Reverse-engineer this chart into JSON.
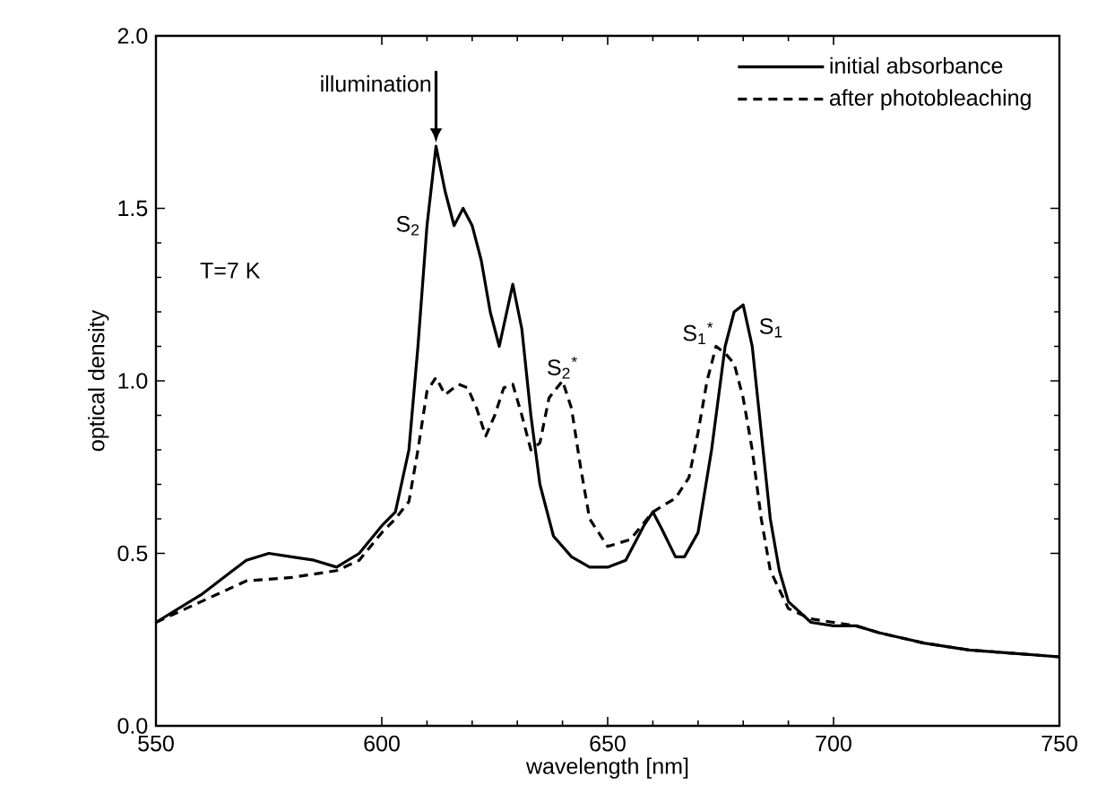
{
  "chart_data": {
    "type": "line",
    "xlabel": "wavelength [nm]",
    "ylabel": "optical density",
    "xlim": [
      550,
      750
    ],
    "ylim": [
      0,
      2.0
    ],
    "xticks": [
      550,
      600,
      650,
      700,
      750
    ],
    "yticks": [
      {
        "value": 0,
        "label": "0.0"
      },
      {
        "value": 0.5,
        "label": "0.5"
      },
      {
        "value": 1.0,
        "label": "1.0"
      },
      {
        "value": 1.5,
        "label": "1.5"
      },
      {
        "value": 2.0,
        "label": "2.0"
      }
    ],
    "legend": "top right",
    "grid": false,
    "marker": "none",
    "series": [
      {
        "name": "initial absorbance",
        "color": "#000000",
        "line_style": "solid",
        "x": [
          550,
          560,
          570,
          575,
          580,
          585,
          590,
          595,
          600,
          603,
          606,
          608,
          610,
          612,
          614,
          616,
          618,
          620,
          622,
          624,
          626,
          628,
          629,
          631,
          633,
          635,
          638,
          642,
          646,
          650,
          654,
          658,
          660,
          662,
          665,
          667,
          670,
          673,
          676,
          678,
          680,
          682,
          684,
          686,
          688,
          690,
          695,
          700,
          705,
          710,
          720,
          730,
          740,
          750
        ],
        "values": [
          0.3,
          0.38,
          0.48,
          0.5,
          0.49,
          0.48,
          0.46,
          0.5,
          0.58,
          0.62,
          0.8,
          1.1,
          1.45,
          1.68,
          1.55,
          1.45,
          1.5,
          1.45,
          1.35,
          1.2,
          1.1,
          1.22,
          1.28,
          1.15,
          0.9,
          0.7,
          0.55,
          0.49,
          0.46,
          0.46,
          0.48,
          0.58,
          0.62,
          0.57,
          0.49,
          0.49,
          0.56,
          0.8,
          1.1,
          1.2,
          1.22,
          1.1,
          0.85,
          0.6,
          0.45,
          0.36,
          0.3,
          0.29,
          0.29,
          0.27,
          0.24,
          0.22,
          0.21,
          0.2
        ]
      },
      {
        "name": "after photobleaching",
        "color": "#000000",
        "line_style": "dashed",
        "x": [
          550,
          560,
          570,
          580,
          590,
          595,
          600,
          603,
          606,
          608,
          610,
          612,
          614,
          617,
          619,
          621,
          623,
          625,
          627,
          629,
          631,
          633,
          635,
          637,
          640,
          642,
          644,
          646,
          650,
          655,
          660,
          665,
          668,
          670,
          672,
          674,
          676,
          678,
          680,
          682,
          684,
          686,
          690,
          695,
          700,
          705,
          710,
          720,
          730,
          740,
          750
        ],
        "values": [
          0.3,
          0.36,
          0.42,
          0.43,
          0.45,
          0.48,
          0.56,
          0.6,
          0.65,
          0.8,
          0.97,
          1.01,
          0.96,
          0.99,
          0.98,
          0.92,
          0.84,
          0.9,
          0.98,
          0.99,
          0.9,
          0.8,
          0.82,
          0.95,
          1.0,
          0.92,
          0.75,
          0.6,
          0.52,
          0.54,
          0.62,
          0.66,
          0.72,
          0.85,
          1.0,
          1.1,
          1.08,
          1.05,
          0.95,
          0.8,
          0.6,
          0.45,
          0.34,
          0.31,
          0.3,
          0.29,
          0.27,
          0.24,
          0.22,
          0.21,
          0.2
        ]
      }
    ],
    "annotations": [
      {
        "text": "illumination",
        "x": 612,
        "y": 1.68
      },
      {
        "text": "S$_{2}$",
        "x": 609,
        "y": 1.45
      },
      {
        "text": "S$_{2}$$^{*}$",
        "x": 640,
        "y": 1.0
      },
      {
        "text": "S$_{1}$$^{*}$",
        "x": 674,
        "y": 1.1
      },
      {
        "text": "S$_{1}$",
        "x": 683,
        "y": 1.12
      },
      "T=7 K"
    ]
  }
}
